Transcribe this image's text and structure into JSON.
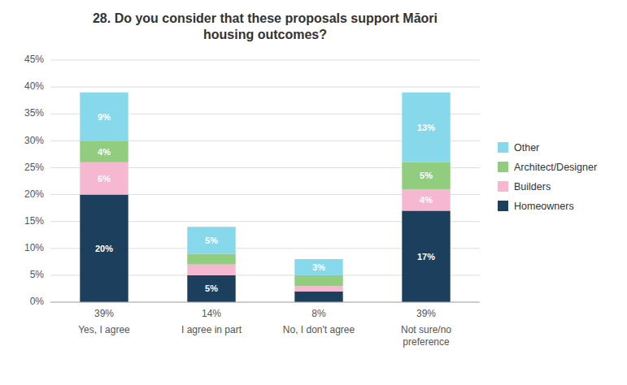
{
  "chart_data": {
    "type": "bar",
    "stacked": true,
    "title": "28. Do you consider that these proposals support Māori\nhousing outcomes?",
    "categories": [
      "Yes, I agree",
      "I agree in part",
      "No, I don't agree",
      "Not sure/no\npreference"
    ],
    "total_labels": [
      "39%",
      "14%",
      "8%",
      "39%"
    ],
    "series": [
      {
        "name": "Homeowners",
        "color": "#1c3f5e",
        "values": [
          20,
          5,
          2,
          17
        ],
        "value_labels": [
          "20%",
          "5%",
          null,
          "17%"
        ]
      },
      {
        "name": "Builders",
        "color": "#f5b8d0",
        "values": [
          6,
          2,
          1,
          4
        ],
        "value_labels": [
          "6%",
          null,
          null,
          "4%"
        ]
      },
      {
        "name": "Architect/Designer",
        "color": "#92cc7f",
        "values": [
          4,
          2,
          2,
          5
        ],
        "value_labels": [
          "4%",
          null,
          null,
          "5%"
        ]
      },
      {
        "name": "Other",
        "color": "#87d8eb",
        "values": [
          9,
          5,
          3,
          13
        ],
        "value_labels": [
          "9%",
          "5%",
          "3%",
          "13%"
        ]
      }
    ],
    "ylim": [
      0,
      45
    ],
    "yticks": [
      {
        "value": 0,
        "label": "0%"
      },
      {
        "value": 5,
        "label": "5%"
      },
      {
        "value": 10,
        "label": "10%"
      },
      {
        "value": 15,
        "label": "15%"
      },
      {
        "value": 20,
        "label": "20%"
      },
      {
        "value": 25,
        "label": "25%"
      },
      {
        "value": 30,
        "label": "30%"
      },
      {
        "value": 35,
        "label": "35%"
      },
      {
        "value": 40,
        "label": "40%"
      },
      {
        "value": 45,
        "label": "45%"
      }
    ],
    "grid": true,
    "legend": "right"
  }
}
